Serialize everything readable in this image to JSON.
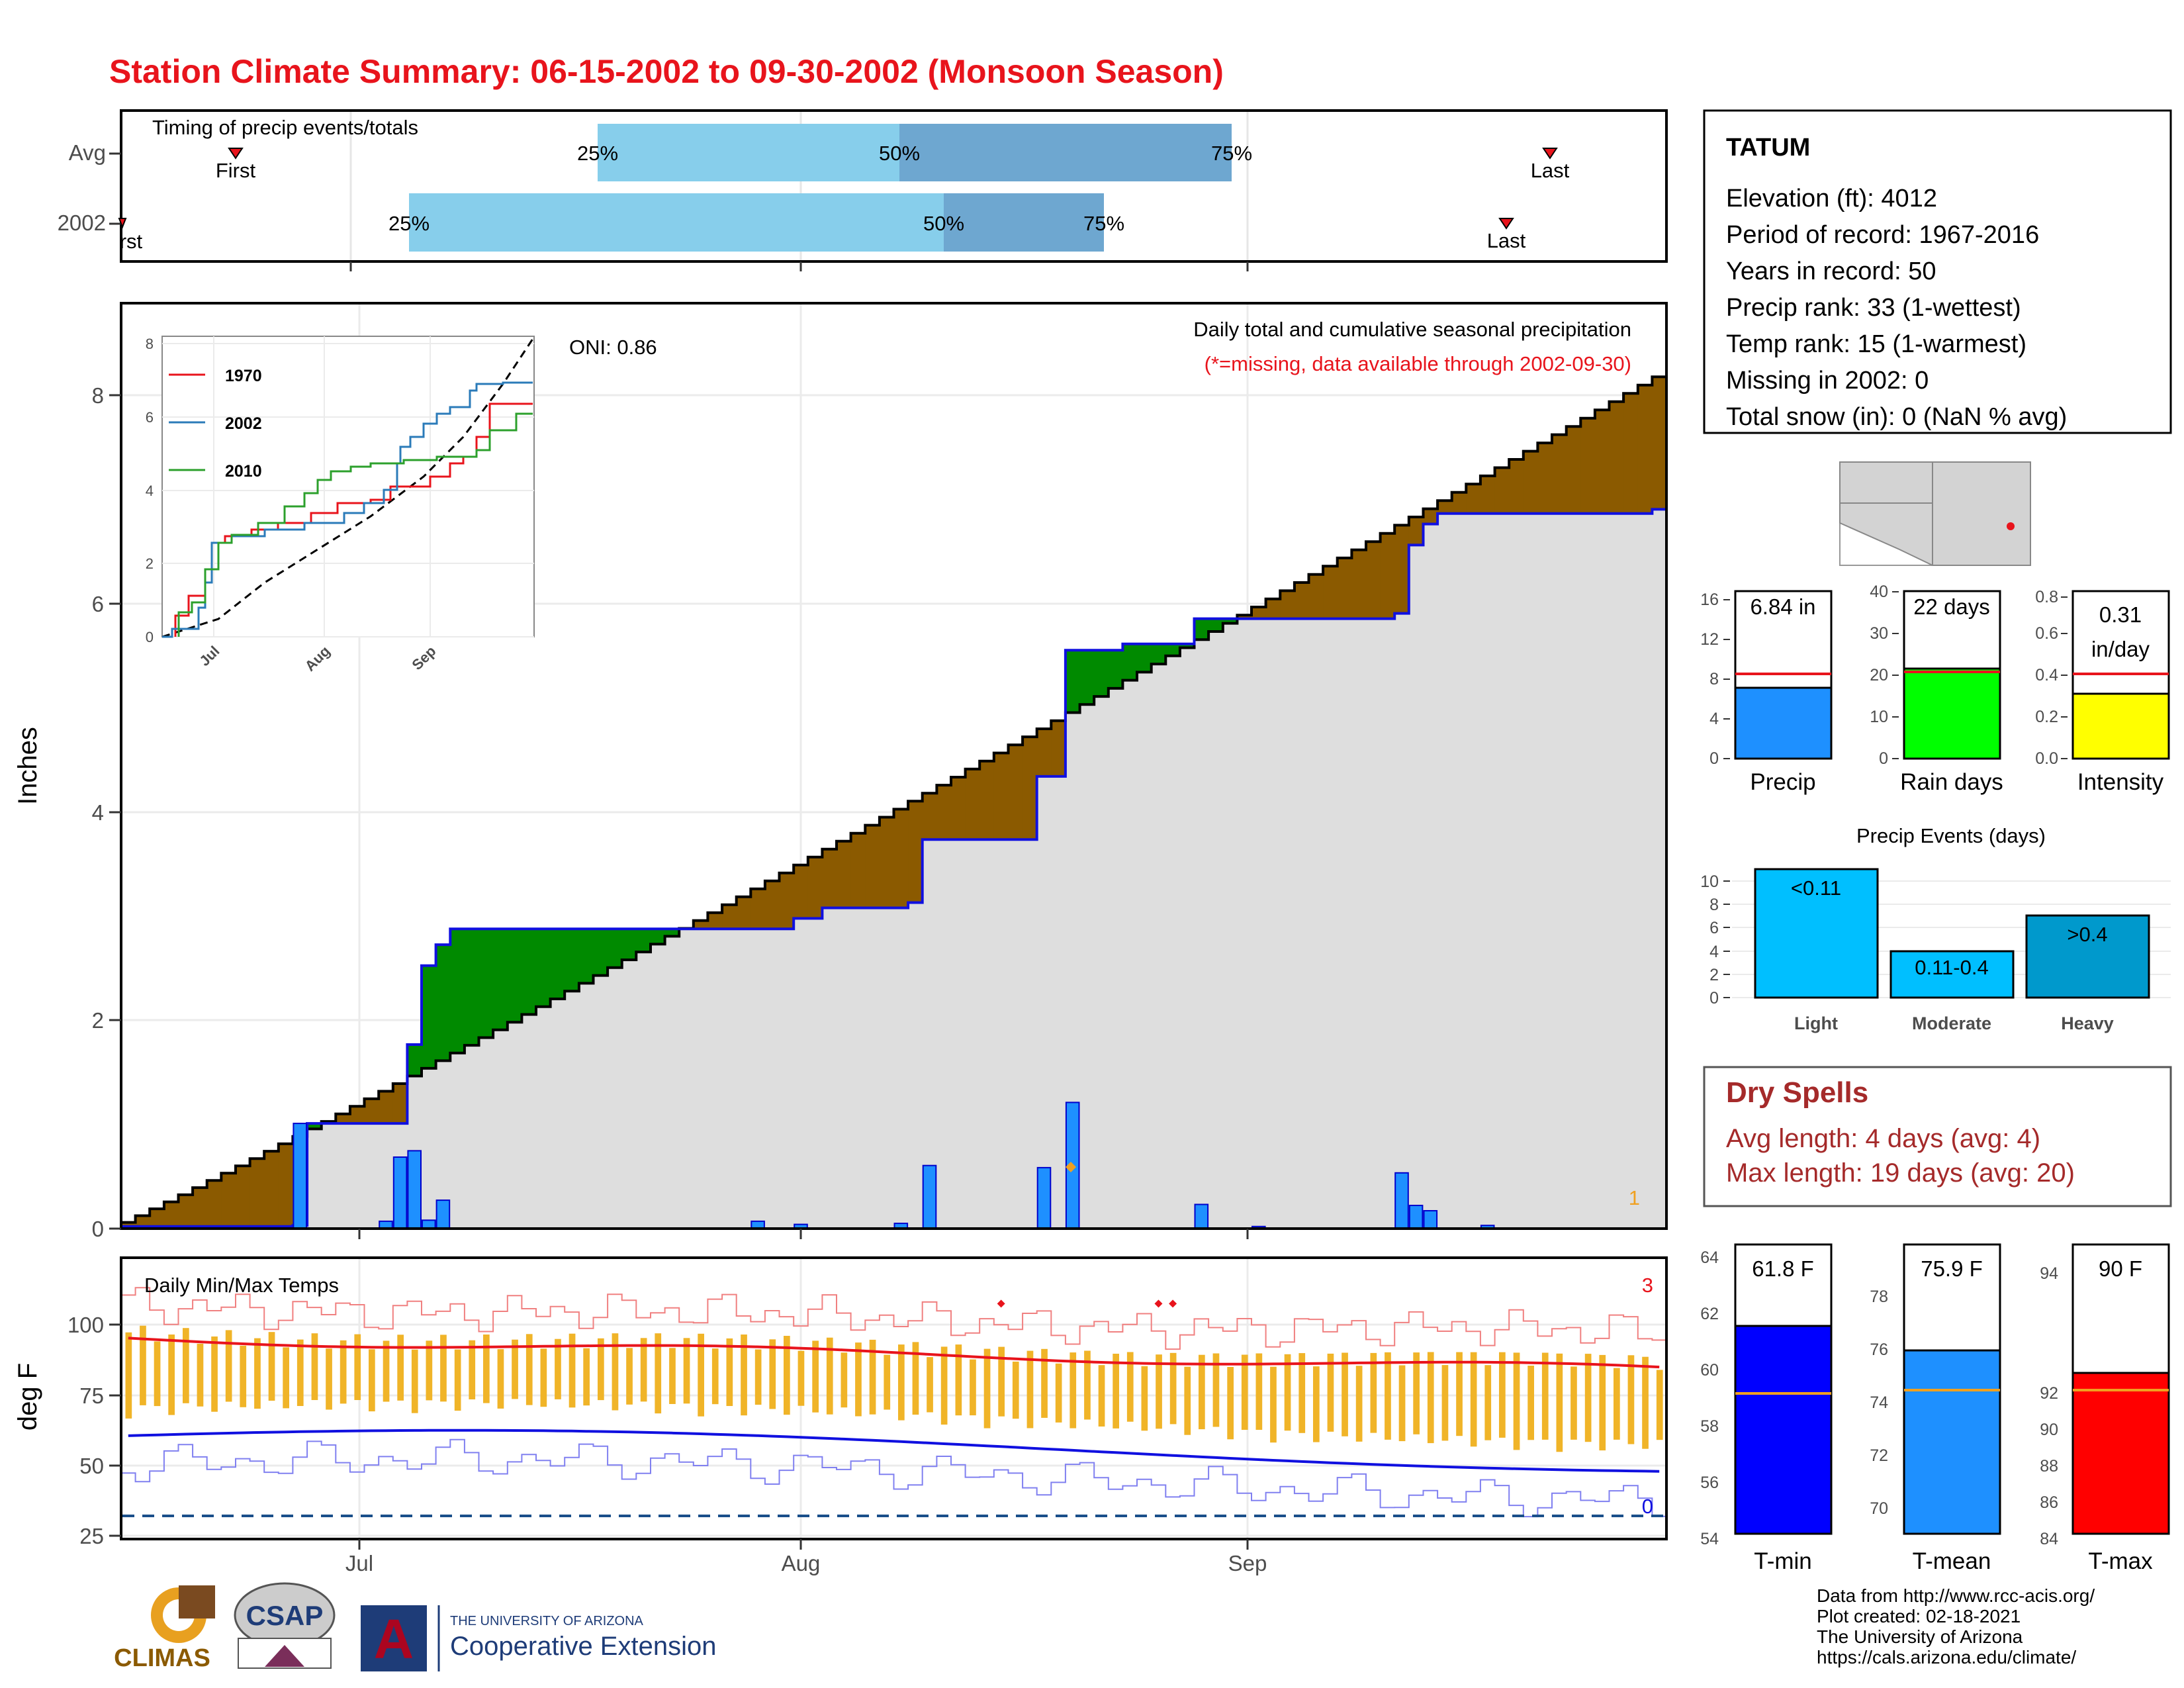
{
  "title": "Station Climate Summary: 06-15-2002 to 09-30-2002 (Monsoon Season)",
  "colors": {
    "title": "#e8141c",
    "deficit": "#8b5a00",
    "surplus": "#008a00",
    "avg_cum_fill": "#dedede",
    "daily_bar": "#1e90ff",
    "timing_light": "#87ceeb",
    "timing_dark": "#6ea7d0",
    "tmax_line": "#e8141c",
    "tmin_line": "#1010e0",
    "temp_range_bar": "#f0b428",
    "dry_spells": "#a52a2a"
  },
  "station": {
    "name": "TATUM",
    "lines": [
      "Elevation (ft): 4012",
      "Period of record: 1967-2016",
      "Years in record: 50",
      "Precip rank: 33 (1-wettest)",
      "Temp rank: 15 (1-warmest)",
      "Missing in 2002: 0",
      "Total snow (in): 0 (NaN % avg)"
    ]
  },
  "timing": {
    "label": "Timing of precip events/totals",
    "rows": [
      "Avg",
      "2002"
    ],
    "avg_labels": [
      "First",
      "25%",
      "50%",
      "75%",
      "Last"
    ],
    "y2002_labels": [
      "First",
      "25%",
      "50%",
      "75%",
      "Last"
    ],
    "axis_ticks": [
      "Jul",
      "Aug",
      "Sep"
    ]
  },
  "main_chart": {
    "ylabel": "Inches",
    "legend_line1": "Daily total and cumulative seasonal precipitation",
    "legend_line2": "(*=missing, data available through 2002-09-30)",
    "oni": "ONI: 0.86",
    "corner_count": "1",
    "y_ticks": [
      "0",
      "2",
      "4",
      "6",
      "8"
    ]
  },
  "inset": {
    "legend": [
      "1970",
      "2002",
      "2010"
    ],
    "legend_colors": [
      "#e8141c",
      "#2b7bb9",
      "#2ca02c"
    ],
    "y_ticks": [
      "0",
      "2",
      "4",
      "6",
      "8"
    ],
    "x_ticks": [
      "Jul",
      "Aug",
      "Sep"
    ]
  },
  "temp_chart": {
    "title": "Daily Min/Max Temps",
    "ylabel": "deg F",
    "top_count": "3",
    "bottom_count": "0",
    "y_ticks": [
      "25",
      "50",
      "75",
      "100"
    ],
    "x_ticks": [
      "Jul",
      "Aug",
      "Sep"
    ]
  },
  "summary_bars": {
    "precip": {
      "label": "Precip",
      "value_text": "6.84 in",
      "y_ticks": [
        "0",
        "4",
        "8",
        "12",
        "16"
      ]
    },
    "rain_days": {
      "label": "Rain days",
      "value_text": "22 days",
      "y_ticks": [
        "0",
        "10",
        "20",
        "30",
        "40"
      ]
    },
    "intensity": {
      "label": "Intensity",
      "value_text": "0.31 in/day",
      "value_line1": "0.31",
      "value_line2": "in/day",
      "y_ticks": [
        "0.0",
        "0.2",
        "0.4",
        "0.6",
        "0.8"
      ]
    }
  },
  "events": {
    "title": "Precip Events (days)",
    "categories": [
      "Light",
      "Moderate",
      "Heavy"
    ],
    "labels": [
      "<0.11",
      "0.11-0.4",
      ">0.4"
    ],
    "y_ticks": [
      "0",
      "2",
      "4",
      "6",
      "8",
      "10"
    ]
  },
  "dry_spells": {
    "title": "Dry Spells",
    "avg_line": "Avg length: 4 days (avg: 4)",
    "max_line": "Max length: 19 days (avg: 20)"
  },
  "temp_bars": {
    "tmin": {
      "label": "T-min",
      "value_text": "61.8 F",
      "y_ticks": [
        "54",
        "56",
        "58",
        "60",
        "62",
        "64"
      ]
    },
    "tmean": {
      "label": "T-mean",
      "value_text": "75.9 F",
      "y_ticks": [
        "70",
        "72",
        "74",
        "76",
        "78"
      ]
    },
    "tmax": {
      "label": "T-max",
      "value_text": "90 F",
      "y_ticks": [
        "84",
        "86",
        "88",
        "90",
        "92",
        "94"
      ]
    }
  },
  "footer": {
    "lines": [
      "Data from http://www.rcc-acis.org/",
      "Plot created: 02-18-2021",
      "The University of Arizona",
      "https://cals.arizona.edu/climate/"
    ],
    "logo_climas": "CLIMAS",
    "logo_csap": "CSAP",
    "ua_line1": "THE UNIVERSITY OF ARIZONA",
    "ua_line2": "Cooperative Extension"
  },
  "chart_data": [
    {
      "type": "area",
      "title": "Daily total and cumulative seasonal precipitation",
      "ylabel": "Inches",
      "x_range": [
        "2002-06-15",
        "2002-09-30"
      ],
      "ylim": [
        0,
        8.8
      ],
      "series": [
        {
          "name": "2002",
          "total": 6.84
        },
        {
          "name": "Avg",
          "total": 8.1
        }
      ],
      "cumulative_2002_points": [
        [
          "2002-06-15",
          0.02
        ],
        [
          "2002-06-27",
          0.03
        ],
        [
          "2002-06-28",
          1.0
        ],
        [
          "2002-07-04",
          1.0
        ],
        [
          "2002-07-05",
          1.75
        ],
        [
          "2002-07-06",
          2.5
        ],
        [
          "2002-07-07",
          2.7
        ],
        [
          "2002-07-08",
          2.85
        ],
        [
          "2002-08-01",
          2.95
        ],
        [
          "2002-08-03",
          3.05
        ],
        [
          "2002-08-09",
          3.1
        ],
        [
          "2002-08-10",
          3.7
        ],
        [
          "2002-08-18",
          4.3
        ],
        [
          "2002-08-20",
          5.5
        ],
        [
          "2002-08-24",
          5.56
        ],
        [
          "2002-08-29",
          5.8
        ],
        [
          "2002-09-12",
          5.85
        ],
        [
          "2002-09-13",
          6.5
        ],
        [
          "2002-09-14",
          6.7
        ],
        [
          "2002-09-15",
          6.8
        ],
        [
          "2002-09-30",
          6.84
        ]
      ],
      "daily_2002": [
        [
          "2002-06-27",
          1.0
        ],
        [
          "2002-07-03",
          0.07
        ],
        [
          "2002-07-04",
          0.68
        ],
        [
          "2002-07-05",
          0.74
        ],
        [
          "2002-07-06",
          0.08
        ],
        [
          "2002-07-07",
          0.27
        ],
        [
          "2002-07-29",
          0.07
        ],
        [
          "2002-08-01",
          0.04
        ],
        [
          "2002-08-08",
          0.05
        ],
        [
          "2002-08-10",
          0.6
        ],
        [
          "2002-08-18",
          0.58
        ],
        [
          "2002-08-20",
          1.2
        ],
        [
          "2002-08-29",
          0.23
        ],
        [
          "2002-09-02",
          0.02
        ],
        [
          "2002-09-12",
          0.53
        ],
        [
          "2002-09-13",
          0.22
        ],
        [
          "2002-09-14",
          0.17
        ],
        [
          "2002-09-18",
          0.03
        ]
      ]
    },
    {
      "type": "line",
      "title": "Daily Min/Max Temps",
      "ylabel": "deg F",
      "ylim": [
        22,
        120
      ],
      "series": [
        {
          "name": "avg max",
          "start": 92,
          "end": 81
        },
        {
          "name": "avg min",
          "start": 58,
          "end": 48
        }
      ]
    },
    {
      "type": "bar",
      "categories": [
        "Precip",
        "Rain days",
        "Intensity"
      ],
      "values": [
        6.84,
        22,
        0.31
      ],
      "avg": [
        8.5,
        21,
        0.41
      ]
    },
    {
      "type": "bar",
      "title": "Precip Events (days)",
      "categories": [
        "Light",
        "Moderate",
        "Heavy"
      ],
      "values": [
        11,
        4,
        7
      ],
      "ylim": [
        0,
        11.5
      ]
    },
    {
      "type": "bar",
      "categories": [
        "T-min",
        "T-mean",
        "T-max"
      ],
      "values": [
        61.8,
        75.9,
        90
      ],
      "avg": [
        59.4,
        74.5,
        89.4
      ]
    }
  ]
}
